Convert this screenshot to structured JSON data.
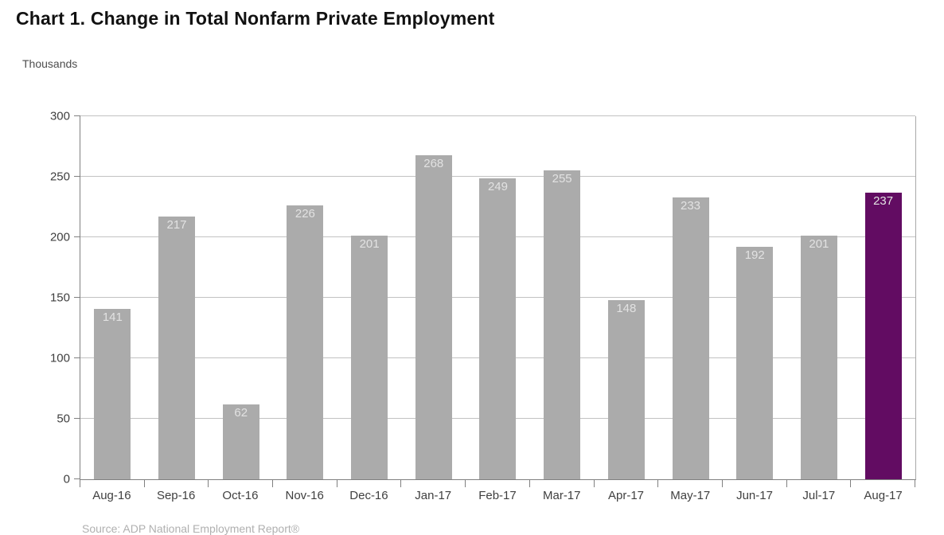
{
  "title": "Chart 1. Change in Total Nonfarm Private Employment",
  "units_label": "Thousands",
  "source_note": "Source: ADP National Employment Report®",
  "chart_data": {
    "type": "bar",
    "title": "Chart 1. Change in Total Nonfarm Private Employment",
    "ylabel": "Thousands",
    "xlabel": "",
    "categories": [
      "Aug-16",
      "Sep-16",
      "Oct-16",
      "Nov-16",
      "Dec-16",
      "Jan-17",
      "Feb-17",
      "Mar-17",
      "Apr-17",
      "May-17",
      "Jun-17",
      "Jul-17",
      "Aug-17"
    ],
    "values": [
      141,
      217,
      62,
      226,
      201,
      268,
      249,
      255,
      148,
      233,
      192,
      201,
      237
    ],
    "ylim": [
      0,
      300
    ],
    "yticks": [
      0,
      50,
      100,
      150,
      200,
      250,
      300
    ],
    "grid": true,
    "legend": false,
    "value_labels_position": "inside-top",
    "highlight_index": 12,
    "colors": {
      "bar": "#ababab",
      "highlight": "#620c62",
      "value_label": "#e2e2e2",
      "gridline": "#c2c2c2",
      "axis": "#808080",
      "tick_label": "#3f3f3f"
    }
  }
}
